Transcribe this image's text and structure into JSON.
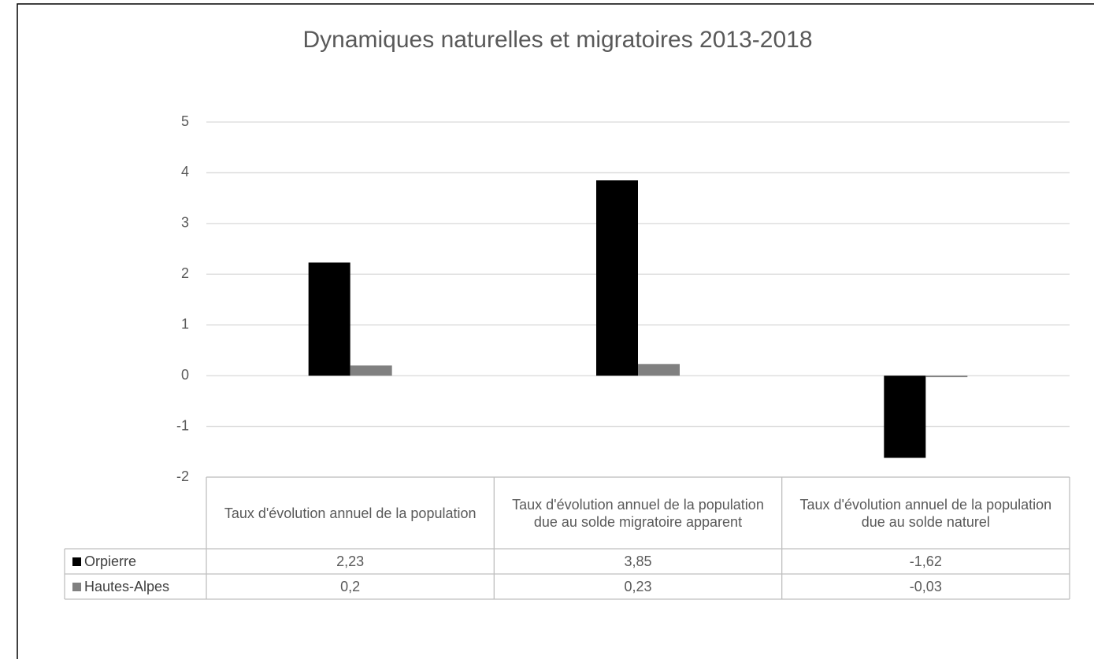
{
  "chart_data": {
    "type": "bar",
    "title": "Dynamiques naturelles et migratoires 2013-2018",
    "categories": [
      "Taux d'évolution annuel de la population",
      "Taux d'évolution annuel de la population due au solde migratoire apparent",
      "Taux d'évolution annuel de la population due au solde naturel"
    ],
    "series": [
      {
        "name": "Orpierre",
        "color": "#000000",
        "values": [
          2.23,
          3.85,
          -1.62
        ],
        "value_labels": [
          "2,23",
          "3,85",
          "-1,62"
        ]
      },
      {
        "name": "Hautes-Alpes",
        "color": "#808080",
        "values": [
          0.2,
          0.23,
          -0.03
        ],
        "value_labels": [
          "0,2",
          "0,23",
          "-0,03"
        ]
      }
    ],
    "ylim": [
      -2,
      5
    ],
    "yticks": [
      -2,
      -1,
      0,
      1,
      2,
      3,
      4,
      5
    ],
    "grid": true
  }
}
